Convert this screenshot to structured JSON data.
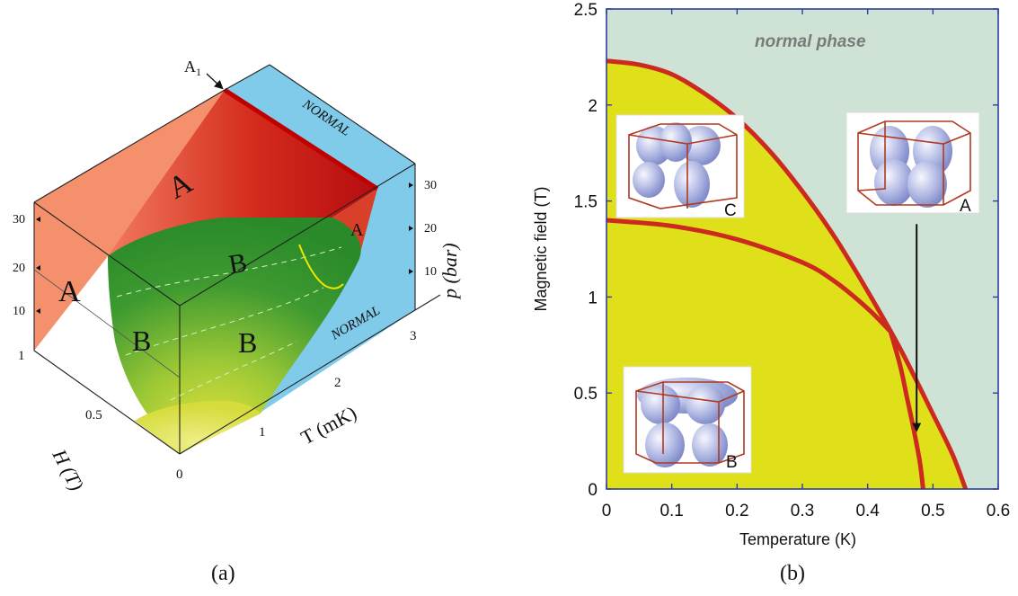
{
  "figure": {
    "panel_a_caption": "(a)",
    "panel_b_caption": "(b)"
  },
  "panel_a": {
    "phase_labels": {
      "A_back": "A",
      "A_left": "A",
      "A_right": "A",
      "B_top": "B",
      "B_left": "B",
      "B_front": "B",
      "normal_top": "NORMAL",
      "normal_right": "NORMAL"
    },
    "point_label": "A",
    "point_subscript": "1",
    "axis_labels": {
      "H": "H (T)",
      "T": "T (mK)",
      "p": "p (bar)"
    },
    "ticks": {
      "H": [
        "1",
        "0.5",
        "0"
      ],
      "T": [
        "1",
        "2",
        "3"
      ],
      "p_left": [
        "30",
        "20",
        "10"
      ],
      "p_right": [
        "30",
        "20",
        "10"
      ]
    },
    "colors": {
      "A_phase": "#f4906c",
      "A_phase_dark": "#c41414",
      "normal": "#7fcbe9",
      "B_phase": "#2e8f2e",
      "B_low": "#d8e040"
    }
  },
  "chart_data": [
    {
      "type": "diagram",
      "panel": "(a)"
    },
    {
      "type": "line",
      "panel": "(b)",
      "title": "",
      "xlabel": "Temperature (K)",
      "ylabel": "Magnetic field (T)",
      "xlim": [
        0,
        0.6
      ],
      "ylim": [
        0,
        2.5
      ],
      "xticks": [
        0,
        0.1,
        0.2,
        0.3,
        0.4,
        0.5,
        0.6
      ],
      "xtick_labels": [
        "0",
        "0.1",
        "0.2",
        "0.3",
        "0.4",
        "0.5",
        "0.6"
      ],
      "yticks": [
        0,
        0.5,
        1,
        1.5,
        2,
        2.5
      ],
      "ytick_labels": [
        "0",
        "0.5",
        "1",
        "1.5",
        "2",
        "2.5"
      ],
      "region_labels": [
        "normal phase"
      ],
      "inset_labels": [
        "C",
        "A",
        "B"
      ],
      "series": [
        {
          "x": [
            0,
            0.05,
            0.1,
            0.15,
            0.2,
            0.25,
            0.3,
            0.35,
            0.4,
            0.45,
            0.5,
            0.53,
            0.55
          ],
          "y": [
            2.23,
            2.21,
            2.16,
            2.06,
            1.93,
            1.76,
            1.55,
            1.31,
            1.03,
            0.73,
            0.39,
            0.18,
            0.0
          ]
        },
        {
          "x": [
            0,
            0.1,
            0.2,
            0.3,
            0.35,
            0.4,
            0.435
          ],
          "y": [
            1.4,
            1.37,
            1.3,
            1.18,
            1.08,
            0.94,
            0.82
          ]
        },
        {
          "x": [
            0.435,
            0.45,
            0.46,
            0.47,
            0.48,
            0.485
          ],
          "y": [
            0.82,
            0.64,
            0.48,
            0.32,
            0.14,
            0.0
          ]
        }
      ],
      "arrow": {
        "x": 0.475,
        "y_from": 1.38,
        "y_to": 0.32
      },
      "colors": {
        "normal_phase": "#cfe2d6",
        "ordered_phase": "#e0e01a",
        "curve": "#cc2a1e",
        "axis_frame": "#2c3f9c"
      }
    }
  ]
}
